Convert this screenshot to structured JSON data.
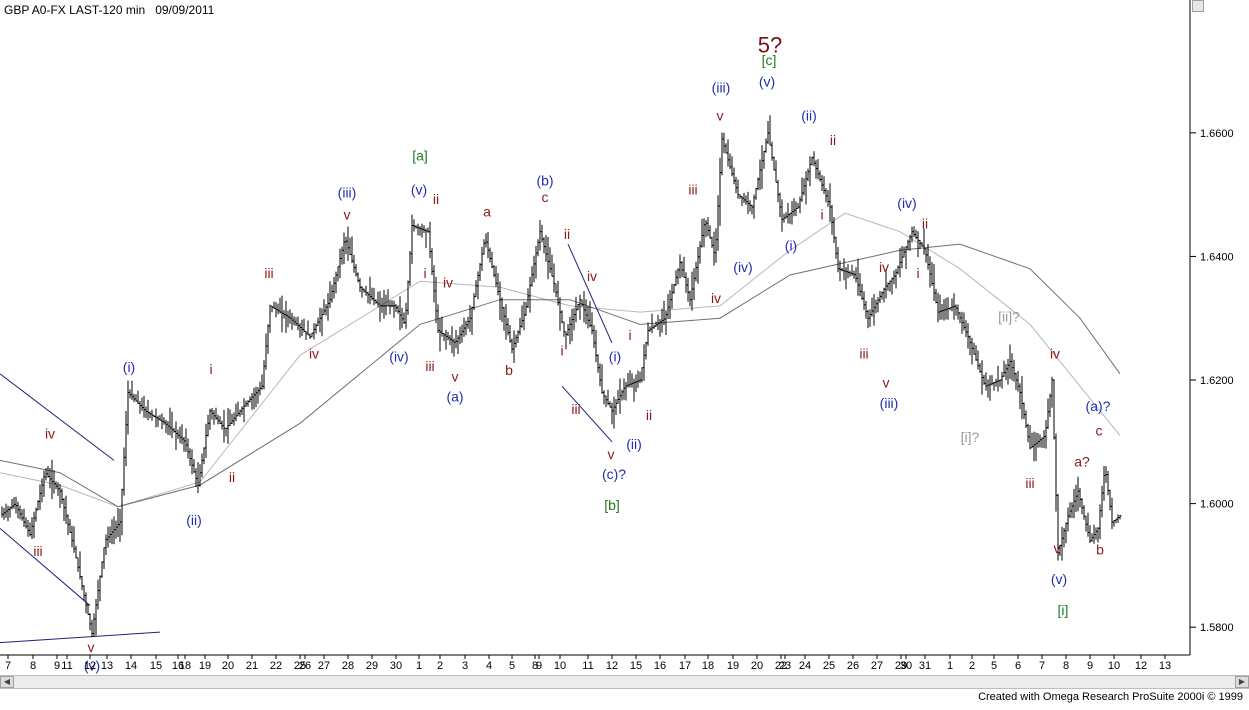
{
  "header": {
    "symbol": "GBP A0-FX LAST-120 min",
    "date": "09/09/2011"
  },
  "footer": {
    "credit": "Created with Omega Research ProSuite 2000i © 1999"
  },
  "colors": {
    "bars": "#000000",
    "ma_fast": "#9a9a9a",
    "ma_mid": "#b8b8b8",
    "ma_slow": "#707070",
    "trendline": "#1a237e",
    "label_red": "#8b1a1a",
    "label_blue": "#1f2db4",
    "label_green": "#1e7b1e",
    "label_grey": "#9a9a9a",
    "label_maroon": "#7a0f0f"
  },
  "chart_data": {
    "type": "ohlc",
    "title": "GBP A0-FX LAST-120 min 09/09/2011",
    "ylim": [
      1.5755,
      1.6815
    ],
    "y_ticks": [
      1.58,
      1.6,
      1.62,
      1.64,
      1.66
    ],
    "y_tick_labels": [
      "1.5800",
      "1.6000",
      "1.6200",
      "1.6400",
      "1.6600"
    ],
    "x_tick_labels": [
      "7",
      "8",
      "9",
      "11",
      "12",
      "13",
      "14",
      "15",
      "16",
      "18",
      "19",
      "20",
      "21",
      "22",
      "25",
      "26",
      "27",
      "28",
      "29",
      "30",
      "1",
      "2",
      "3",
      "4",
      "5",
      "8",
      "9",
      "10",
      "11",
      "12",
      "15",
      "16",
      "17",
      "18",
      "19",
      "20",
      "22",
      "23",
      "24",
      "25",
      "26",
      "27",
      "29",
      "30",
      "31",
      "1",
      "2",
      "5",
      "6",
      "7",
      "8",
      "9",
      "10",
      "12",
      "13"
    ],
    "x_tick_positions": [
      8,
      33,
      57,
      67,
      90,
      107,
      131,
      156,
      178,
      185,
      205,
      228,
      252,
      276,
      300,
      305,
      324,
      348,
      372,
      396,
      419,
      440,
      465,
      489,
      512,
      535,
      539,
      560,
      588,
      612,
      636,
      660,
      685,
      708,
      733,
      757,
      781,
      785,
      805,
      829,
      853,
      877,
      901,
      906,
      925,
      950,
      972,
      994,
      1018,
      1042,
      1066,
      1090,
      1114,
      1141,
      1165
    ],
    "series": [
      {
        "name": "price",
        "path": [
          [
            0,
            1.598
          ],
          [
            15,
            1.6
          ],
          [
            30,
            1.595
          ],
          [
            45,
            1.605
          ],
          [
            60,
            1.602
          ],
          [
            75,
            1.592
          ],
          [
            92,
            1.579
          ],
          [
            105,
            1.594
          ],
          [
            120,
            1.597
          ],
          [
            128,
            1.618
          ],
          [
            145,
            1.615
          ],
          [
            165,
            1.613
          ],
          [
            185,
            1.61
          ],
          [
            198,
            1.603
          ],
          [
            210,
            1.615
          ],
          [
            225,
            1.612
          ],
          [
            245,
            1.616
          ],
          [
            262,
            1.619
          ],
          [
            270,
            1.632
          ],
          [
            290,
            1.63
          ],
          [
            310,
            1.627
          ],
          [
            330,
            1.633
          ],
          [
            345,
            1.643
          ],
          [
            360,
            1.635
          ],
          [
            380,
            1.632
          ],
          [
            395,
            1.632
          ],
          [
            405,
            1.629
          ],
          [
            412,
            1.645
          ],
          [
            428,
            1.644
          ],
          [
            438,
            1.628
          ],
          [
            455,
            1.626
          ],
          [
            470,
            1.63
          ],
          [
            485,
            1.643
          ],
          [
            500,
            1.633
          ],
          [
            512,
            1.625
          ],
          [
            525,
            1.631
          ],
          [
            540,
            1.644
          ],
          [
            555,
            1.635
          ],
          [
            565,
            1.627
          ],
          [
            580,
            1.633
          ],
          [
            592,
            1.628
          ],
          [
            602,
            1.618
          ],
          [
            612,
            1.615
          ],
          [
            625,
            1.619
          ],
          [
            640,
            1.62
          ],
          [
            648,
            1.628
          ],
          [
            665,
            1.63
          ],
          [
            680,
            1.639
          ],
          [
            690,
            1.633
          ],
          [
            705,
            1.646
          ],
          [
            715,
            1.64
          ],
          [
            722,
            1.659
          ],
          [
            738,
            1.65
          ],
          [
            752,
            1.648
          ],
          [
            768,
            1.66
          ],
          [
            782,
            1.646
          ],
          [
            798,
            1.648
          ],
          [
            812,
            1.656
          ],
          [
            830,
            1.648
          ],
          [
            838,
            1.638
          ],
          [
            855,
            1.637
          ],
          [
            868,
            1.63
          ],
          [
            885,
            1.635
          ],
          [
            895,
            1.637
          ],
          [
            912,
            1.644
          ],
          [
            925,
            1.641
          ],
          [
            938,
            1.631
          ],
          [
            955,
            1.632
          ],
          [
            968,
            1.627
          ],
          [
            985,
            1.619
          ],
          [
            1000,
            1.62
          ],
          [
            1010,
            1.623
          ],
          [
            1020,
            1.618
          ],
          [
            1030,
            1.609
          ],
          [
            1045,
            1.611
          ],
          [
            1052,
            1.62
          ],
          [
            1058,
            1.592
          ],
          [
            1068,
            1.598
          ],
          [
            1078,
            1.602
          ],
          [
            1090,
            1.594
          ],
          [
            1098,
            1.596
          ],
          [
            1105,
            1.606
          ],
          [
            1112,
            1.597
          ],
          [
            1120,
            1.598
          ]
        ]
      },
      {
        "name": "ma-fast",
        "path": [
          [
            0,
            1.605
          ],
          [
            60,
            1.603
          ],
          [
            118,
            1.5995
          ],
          [
            200,
            1.6035
          ],
          [
            300,
            1.624
          ],
          [
            420,
            1.636
          ],
          [
            500,
            1.635
          ],
          [
            570,
            1.632
          ],
          [
            640,
            1.631
          ],
          [
            720,
            1.632
          ],
          [
            790,
            1.641
          ],
          [
            845,
            1.647
          ],
          [
            900,
            1.644
          ],
          [
            960,
            1.638
          ],
          [
            1030,
            1.629
          ],
          [
            1080,
            1.619
          ],
          [
            1120,
            1.611
          ]
        ]
      },
      {
        "name": "ma-slow",
        "path": [
          [
            0,
            1.607
          ],
          [
            60,
            1.605
          ],
          [
            118,
            1.5995
          ],
          [
            200,
            1.603
          ],
          [
            300,
            1.613
          ],
          [
            420,
            1.629
          ],
          [
            500,
            1.633
          ],
          [
            570,
            1.633
          ],
          [
            640,
            1.629
          ],
          [
            720,
            1.63
          ],
          [
            790,
            1.637
          ],
          [
            845,
            1.639
          ],
          [
            900,
            1.641
          ],
          [
            960,
            1.642
          ],
          [
            1030,
            1.638
          ],
          [
            1080,
            1.63
          ],
          [
            1120,
            1.621
          ]
        ]
      }
    ],
    "trendlines": [
      [
        [
          0,
          1.621
        ],
        [
          114,
          1.607
        ]
      ],
      [
        [
          0,
          1.596
        ],
        [
          90,
          1.5835
        ]
      ],
      [
        [
          0,
          1.5775
        ],
        [
          160,
          1.5792
        ]
      ],
      [
        [
          568,
          1.642
        ],
        [
          612,
          1.626
        ]
      ],
      [
        [
          562,
          1.619
        ],
        [
          612,
          1.61
        ]
      ]
    ],
    "annotations": [
      {
        "text": "5?",
        "x": 770,
        "y": 1.673,
        "color": "maroon",
        "size": 22
      },
      {
        "text": "[c]",
        "x": 769,
        "y": 1.671,
        "color": "green"
      },
      {
        "text": "(iii)",
        "x": 721,
        "y": 1.6665,
        "color": "blue"
      },
      {
        "text": "(v)",
        "x": 767,
        "y": 1.6675,
        "color": "blue"
      },
      {
        "text": "v",
        "x": 720,
        "y": 1.662,
        "color": "red"
      },
      {
        "text": "(ii)",
        "x": 809,
        "y": 1.662,
        "color": "blue"
      },
      {
        "text": "ii",
        "x": 833,
        "y": 1.658,
        "color": "red"
      },
      {
        "text": "iii",
        "x": 693,
        "y": 1.65,
        "color": "red"
      },
      {
        "text": "i",
        "x": 822,
        "y": 1.646,
        "color": "red"
      },
      {
        "text": "(i)",
        "x": 791,
        "y": 1.641,
        "color": "blue"
      },
      {
        "text": "(iv)",
        "x": 743,
        "y": 1.6375,
        "color": "blue"
      },
      {
        "text": "iv",
        "x": 716,
        "y": 1.6325,
        "color": "red"
      },
      {
        "text": "[a]",
        "x": 420,
        "y": 1.6555,
        "color": "green"
      },
      {
        "text": "(v)",
        "x": 419,
        "y": 1.65,
        "color": "blue"
      },
      {
        "text": "ii",
        "x": 436,
        "y": 1.6485,
        "color": "red"
      },
      {
        "text": "(iii)",
        "x": 347,
        "y": 1.6495,
        "color": "blue"
      },
      {
        "text": "v",
        "x": 347,
        "y": 1.646,
        "color": "red"
      },
      {
        "text": "iii",
        "x": 269,
        "y": 1.6365,
        "color": "red"
      },
      {
        "text": "i",
        "x": 425,
        "y": 1.6365,
        "color": "red"
      },
      {
        "text": "iv",
        "x": 448,
        "y": 1.635,
        "color": "red"
      },
      {
        "text": "iv",
        "x": 314,
        "y": 1.6235,
        "color": "red"
      },
      {
        "text": "(iv)",
        "x": 399,
        "y": 1.623,
        "color": "blue"
      },
      {
        "text": "iii",
        "x": 430,
        "y": 1.6215,
        "color": "red"
      },
      {
        "text": "v",
        "x": 455,
        "y": 1.6198,
        "color": "red"
      },
      {
        "text": "(a)",
        "x": 455,
        "y": 1.6165,
        "color": "blue"
      },
      {
        "text": "b",
        "x": 509,
        "y": 1.6208,
        "color": "red"
      },
      {
        "text": "a",
        "x": 487,
        "y": 1.6465,
        "color": "red"
      },
      {
        "text": "(b)",
        "x": 545,
        "y": 1.6515,
        "color": "blue"
      },
      {
        "text": "c",
        "x": 545,
        "y": 1.6488,
        "color": "red"
      },
      {
        "text": "ii",
        "x": 567,
        "y": 1.6428,
        "color": "red"
      },
      {
        "text": "iv",
        "x": 592,
        "y": 1.636,
        "color": "red"
      },
      {
        "text": "i",
        "x": 562,
        "y": 1.624,
        "color": "red"
      },
      {
        "text": "iii",
        "x": 576,
        "y": 1.6145,
        "color": "red"
      },
      {
        "text": "i",
        "x": 630,
        "y": 1.6265,
        "color": "red"
      },
      {
        "text": "(i)",
        "x": 615,
        "y": 1.623,
        "color": "blue"
      },
      {
        "text": "ii",
        "x": 649,
        "y": 1.6135,
        "color": "red"
      },
      {
        "text": "v",
        "x": 611,
        "y": 1.6072,
        "color": "red"
      },
      {
        "text": "(ii)",
        "x": 634,
        "y": 1.6088,
        "color": "blue"
      },
      {
        "text": "(c)?",
        "x": 614,
        "y": 1.604,
        "color": "blue"
      },
      {
        "text": "[b]",
        "x": 612,
        "y": 1.599,
        "color": "green"
      },
      {
        "text": "(iv)",
        "x": 907,
        "y": 1.6478,
        "color": "blue"
      },
      {
        "text": "ii",
        "x": 925,
        "y": 1.6445,
        "color": "red"
      },
      {
        "text": "iv",
        "x": 884,
        "y": 1.6375,
        "color": "red"
      },
      {
        "text": "i",
        "x": 918,
        "y": 1.6365,
        "color": "red"
      },
      {
        "text": "iii",
        "x": 864,
        "y": 1.6235,
        "color": "red"
      },
      {
        "text": "v",
        "x": 886,
        "y": 1.6188,
        "color": "red"
      },
      {
        "text": "(iii)",
        "x": 889,
        "y": 1.6155,
        "color": "blue"
      },
      {
        "text": "[ii]?",
        "x": 1009,
        "y": 1.6295,
        "color": "grey"
      },
      {
        "text": "[i]?",
        "x": 970,
        "y": 1.61,
        "color": "grey"
      },
      {
        "text": "iv",
        "x": 1055,
        "y": 1.6235,
        "color": "red"
      },
      {
        "text": "(a)?",
        "x": 1098,
        "y": 1.615,
        "color": "blue"
      },
      {
        "text": "c",
        "x": 1099,
        "y": 1.611,
        "color": "red"
      },
      {
        "text": "a?",
        "x": 1082,
        "y": 1.606,
        "color": "red"
      },
      {
        "text": "iii",
        "x": 1030,
        "y": 1.6025,
        "color": "red"
      },
      {
        "text": "v",
        "x": 1057,
        "y": 1.592,
        "color": "red"
      },
      {
        "text": "b",
        "x": 1100,
        "y": 1.5918,
        "color": "red"
      },
      {
        "text": "(v)",
        "x": 1059,
        "y": 1.587,
        "color": "blue"
      },
      {
        "text": "[i]",
        "x": 1063,
        "y": 1.582,
        "color": "green"
      },
      {
        "text": "(i)",
        "x": 129,
        "y": 1.6213,
        "color": "blue"
      },
      {
        "text": "i",
        "x": 211,
        "y": 1.621,
        "color": "red"
      },
      {
        "text": "iv",
        "x": 50,
        "y": 1.6105,
        "color": "red"
      },
      {
        "text": "ii",
        "x": 232,
        "y": 1.6035,
        "color": "red"
      },
      {
        "text": "(ii)",
        "x": 194,
        "y": 1.5965,
        "color": "blue"
      },
      {
        "text": "iii",
        "x": 38,
        "y": 1.5915,
        "color": "red"
      },
      {
        "text": "v",
        "x": 91,
        "y": 1.576,
        "color": "red"
      },
      {
        "text": "(v)",
        "x": 92,
        "y": 1.573,
        "color": "blue"
      }
    ]
  }
}
